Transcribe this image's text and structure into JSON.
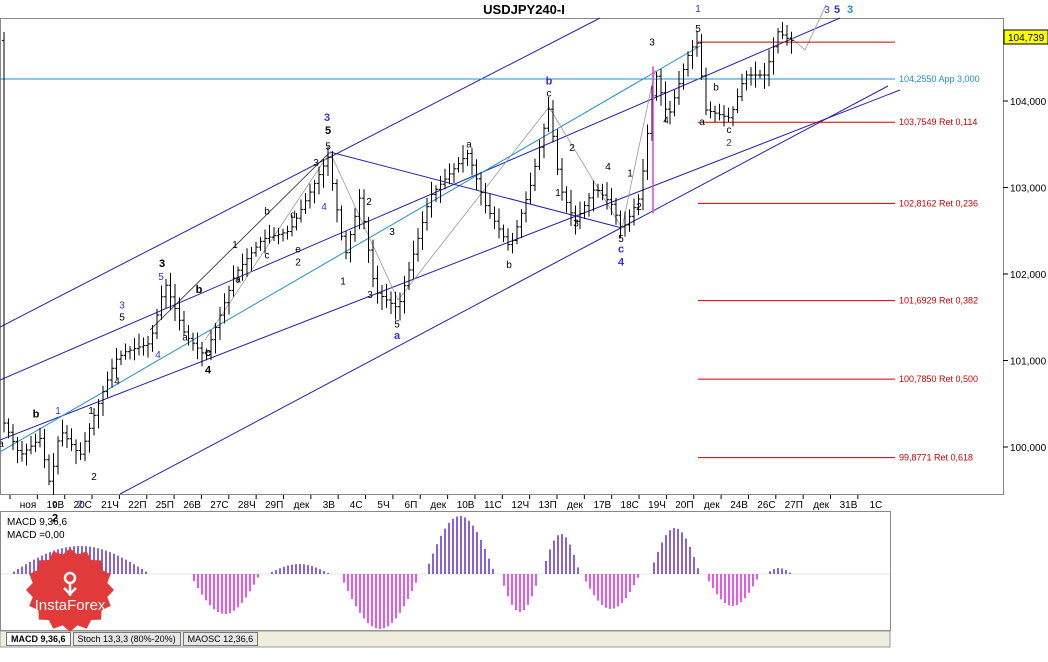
{
  "chart_data": {
    "type": "ohlc",
    "title": "USDJPY240-I",
    "price_axis": {
      "ylim": [
        99.35,
        105.05
      ],
      "ticks": [
        "100,000",
        "101,000",
        "102,000",
        "103,000",
        "104,000"
      ],
      "tick_values": [
        100,
        101,
        102,
        103,
        104
      ],
      "current_price_label": "104,739",
      "current_price": 104.739
    },
    "time_axis": {
      "labels": [
        "ноя",
        "19В",
        "20С",
        "21Ч",
        "22П",
        "25П",
        "26В",
        "27С",
        "28Ч",
        "29П",
        "дек",
        "3В",
        "4С",
        "5Ч",
        "6П",
        "дек",
        "10В",
        "11С",
        "12Ч",
        "13П",
        "дек",
        "17В",
        "18С",
        "19Ч",
        "20П",
        "дек",
        "24В",
        "26С",
        "27П",
        "дек",
        "31В",
        "1С"
      ]
    },
    "horizontal_lines": [
      {
        "value": 104.255,
        "label": "104,2550  App 3,000",
        "color": "#1e90c8"
      },
      {
        "value": 104.68,
        "label": "",
        "color": "#cc0000"
      },
      {
        "value": 103.7549,
        "label": "103,7549  Ret 0,114",
        "color": "#cc0000"
      },
      {
        "value": 102.8162,
        "label": "102,8162  Ret 0,236",
        "color": "#cc0000"
      },
      {
        "value": 101.6929,
        "label": "101,6929  Ret 0,382",
        "color": "#cc0000"
      },
      {
        "value": 100.785,
        "label": "100,7850  Ret 0,500",
        "color": "#cc0000"
      },
      {
        "value": 99.8771,
        "label": "99,8771  Ret 0,618",
        "color": "#cc0000"
      }
    ],
    "wave_labels": [
      {
        "t": "a",
        "x": 1,
        "v": 100.0,
        "c": "#000"
      },
      {
        "t": "b",
        "x": 36,
        "v": 100.34,
        "c": "#000",
        "b": 1
      },
      {
        "t": "1",
        "x": 58,
        "v": 100.38,
        "c": "#3333cc"
      },
      {
        "t": "c",
        "x": 55,
        "v": 99.3,
        "c": "#000"
      },
      {
        "t": "2",
        "x": 55,
        "v": 99.14,
        "c": "#000",
        "b": 1
      },
      {
        "t": "2",
        "x": 80,
        "v": 99.3,
        "c": "#3333cc"
      },
      {
        "t": "2",
        "x": 94,
        "v": 99.62,
        "c": "#000"
      },
      {
        "t": "1",
        "x": 91,
        "v": 100.38,
        "c": "#000"
      },
      {
        "t": "3",
        "x": 122,
        "v": 101.6,
        "c": "#3333cc"
      },
      {
        "t": "5",
        "x": 122,
        "v": 101.46,
        "c": "#000"
      },
      {
        "t": "4",
        "x": 117,
        "v": 100.72,
        "c": "#000"
      },
      {
        "t": "4",
        "x": 158,
        "v": 101.03,
        "c": "#3333cc"
      },
      {
        "t": "3",
        "x": 162,
        "v": 102.08,
        "c": "#000",
        "b": 1
      },
      {
        "t": "5",
        "x": 161,
        "v": 101.93,
        "c": "#3333cc"
      },
      {
        "t": "b",
        "x": 199,
        "v": 101.78,
        "c": "#000",
        "b": 1
      },
      {
        "t": "a",
        "x": 185,
        "v": 101.23,
        "c": "#000"
      },
      {
        "t": "c",
        "x": 208,
        "v": 101.05,
        "c": "#000",
        "b": 1
      },
      {
        "t": "4",
        "x": 208,
        "v": 100.85,
        "c": "#000",
        "b": 1
      },
      {
        "t": "1",
        "x": 235,
        "v": 102.3,
        "c": "#000"
      },
      {
        "t": "a",
        "x": 238,
        "v": 101.9,
        "c": "#000"
      },
      {
        "t": "b",
        "x": 267,
        "v": 102.69,
        "c": "#000"
      },
      {
        "t": "c",
        "x": 267,
        "v": 102.18,
        "c": "#000"
      },
      {
        "t": "d",
        "x": 293,
        "v": 102.65,
        "c": "#000"
      },
      {
        "t": "e",
        "x": 298,
        "v": 102.25,
        "c": "#000"
      },
      {
        "t": "2",
        "x": 298,
        "v": 102.1,
        "c": "#000"
      },
      {
        "t": "3",
        "x": 327,
        "v": 103.77,
        "c": "#3333cc",
        "b": 1
      },
      {
        "t": "5",
        "x": 328,
        "v": 103.62,
        "c": "#000",
        "b": 1
      },
      {
        "t": "5",
        "x": 328,
        "v": 103.44,
        "c": "#000"
      },
      {
        "t": "3",
        "x": 316,
        "v": 103.25,
        "c": "#000"
      },
      {
        "t": "4",
        "x": 324,
        "v": 102.74,
        "c": "#3333cc"
      },
      {
        "t": "2",
        "x": 369,
        "v": 102.8,
        "c": "#000"
      },
      {
        "t": "1",
        "x": 343,
        "v": 101.88,
        "c": "#000"
      },
      {
        "t": "3",
        "x": 392,
        "v": 102.45,
        "c": "#000"
      },
      {
        "t": "3",
        "x": 370,
        "v": 101.72,
        "c": "#000"
      },
      {
        "t": "5",
        "x": 397,
        "v": 101.38,
        "c": "#000"
      },
      {
        "t": "a",
        "x": 397,
        "v": 101.25,
        "c": "#3333cc",
        "b": 1
      },
      {
        "t": "a",
        "x": 469,
        "v": 103.46,
        "c": "#000"
      },
      {
        "t": "b",
        "x": 549,
        "v": 104.19,
        "c": "#3333cc",
        "b": 1
      },
      {
        "t": "c",
        "x": 549,
        "v": 104.05,
        "c": "#000"
      },
      {
        "t": "b",
        "x": 509,
        "v": 102.07,
        "c": "#000"
      },
      {
        "t": "1",
        "x": 558,
        "v": 102.9,
        "c": "#000"
      },
      {
        "t": "2",
        "x": 572,
        "v": 103.42,
        "c": "#000"
      },
      {
        "t": "3",
        "x": 576,
        "v": 102.55,
        "c": "#000"
      },
      {
        "t": "4",
        "x": 608,
        "v": 103.2,
        "c": "#000"
      },
      {
        "t": "5",
        "x": 621,
        "v": 102.37,
        "c": "#000"
      },
      {
        "t": "c",
        "x": 621,
        "v": 102.25,
        "c": "#3333cc",
        "b": 1
      },
      {
        "t": "4",
        "x": 621,
        "v": 102.1,
        "c": "#3333cc",
        "b": 1
      },
      {
        "t": "1",
        "x": 630,
        "v": 103.13,
        "c": "#000"
      },
      {
        "t": "2",
        "x": 639,
        "v": 102.74,
        "c": "#000"
      },
      {
        "t": "3",
        "x": 652,
        "v": 104.64,
        "c": "#000"
      },
      {
        "t": "4",
        "x": 666,
        "v": 103.74,
        "c": "#000"
      },
      {
        "t": "1",
        "x": 698,
        "v": 105.03,
        "c": "#3333cc"
      },
      {
        "t": "5",
        "x": 698,
        "v": 104.8,
        "c": "#000"
      },
      {
        "t": "a",
        "x": 702,
        "v": 103.72,
        "c": "#000"
      },
      {
        "t": "b",
        "x": 716,
        "v": 104.12,
        "c": "#000"
      },
      {
        "t": "c",
        "x": 729,
        "v": 103.63,
        "c": "#000"
      },
      {
        "t": "2",
        "x": 729,
        "v": 103.48,
        "c": "#3333cc"
      },
      {
        "t": "3",
        "x": 827,
        "v": 105.02,
        "c": "#3333cc"
      },
      {
        "t": "5",
        "x": 837,
        "v": 105.02,
        "c": "#3333cc",
        "b": 1
      },
      {
        "t": "3",
        "x": 850,
        "v": 105.02,
        "c": "#1e90c8",
        "b": 1
      }
    ],
    "indicator": {
      "name": "MACD 9,36,6",
      "signal_label": "MACD =0,00",
      "type": "histogram"
    },
    "tabs": [
      "MACD 9,36,6",
      "Stoch 13,3,3 (80%-20%)",
      "MAOSC 12,36,6"
    ],
    "watermark": "InstaForex"
  }
}
